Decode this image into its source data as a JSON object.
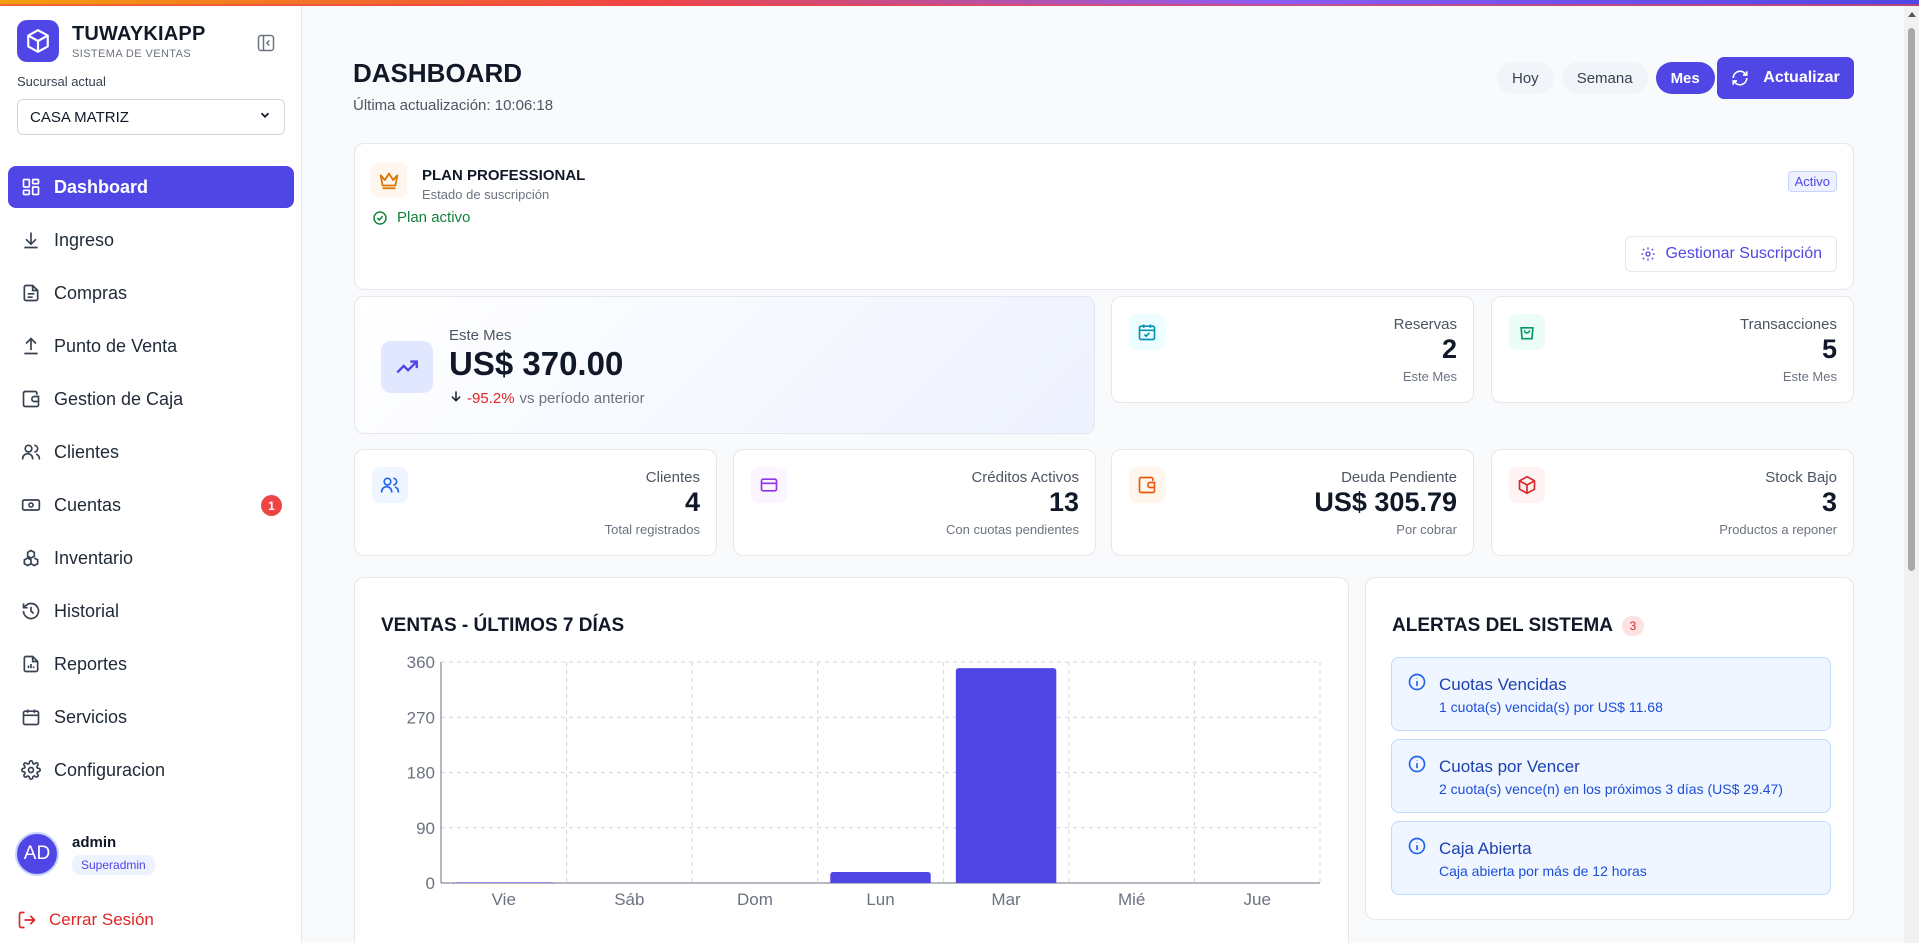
{
  "brand": {
    "title": "TUWAYKIAPP",
    "subtitle": "SISTEMA DE VENTAS"
  },
  "branch": {
    "label": "Sucursal actual",
    "selected": "CASA MATRIZ"
  },
  "nav": {
    "items": [
      {
        "label": "Dashboard",
        "icon": "dashboard-icon"
      },
      {
        "label": "Ingreso",
        "icon": "download-icon"
      },
      {
        "label": "Compras",
        "icon": "document-icon"
      },
      {
        "label": "Punto de Venta",
        "icon": "upload-icon"
      },
      {
        "label": "Gestion de Caja",
        "icon": "wallet-icon"
      },
      {
        "label": "Clientes",
        "icon": "users-icon"
      },
      {
        "label": "Cuentas",
        "icon": "money-icon",
        "badge": "1"
      },
      {
        "label": "Inventario",
        "icon": "boxes-icon"
      },
      {
        "label": "Historial",
        "icon": "history-icon"
      },
      {
        "label": "Reportes",
        "icon": "report-icon"
      },
      {
        "label": "Servicios",
        "icon": "calendar-icon"
      },
      {
        "label": "Configuracion",
        "icon": "gear-icon"
      }
    ]
  },
  "user": {
    "initials": "AD",
    "name": "admin",
    "role": "Superadmin"
  },
  "logout": {
    "label": "Cerrar Sesión"
  },
  "header": {
    "title": "DASHBOARD",
    "last_update": "Última actualización: 10:06:18",
    "periods": [
      "Hoy",
      "Semana",
      "Mes"
    ],
    "active_period": "Mes",
    "refresh_label": "Actualizar"
  },
  "plan": {
    "title": "PLAN PROFESSIONAL",
    "subtitle": "Estado de suscripción",
    "status": "Plan activo",
    "badge": "Activo",
    "manage_label": "Gestionar Suscripción"
  },
  "revenue": {
    "label": "Este Mes",
    "value": "US$ 370.00",
    "change": "-95.2%",
    "change_text": "vs período anterior"
  },
  "stats": {
    "reservas": {
      "label": "Reservas",
      "value": "2",
      "sub": "Este Mes"
    },
    "transacciones": {
      "label": "Transacciones",
      "value": "5",
      "sub": "Este Mes"
    },
    "clientes": {
      "label": "Clientes",
      "value": "4",
      "sub": "Total registrados"
    },
    "creditos": {
      "label": "Créditos Activos",
      "value": "13",
      "sub": "Con cuotas pendientes"
    },
    "deuda": {
      "label": "Deuda Pendiente",
      "value": "US$ 305.79",
      "sub": "Por cobrar"
    },
    "stock": {
      "label": "Stock Bajo",
      "value": "3",
      "sub": "Productos a reponer"
    }
  },
  "colors": {
    "accent": "#4f46e5",
    "danger": "#dc2626",
    "success": "#15803d"
  },
  "chart_data": {
    "type": "bar",
    "title": "VENTAS - ÚLTIMOS 7 DÍAS",
    "categories": [
      "Vie",
      "Sáb",
      "Dom",
      "Lun",
      "Mar",
      "Mié",
      "Jue"
    ],
    "values": [
      1,
      0,
      0,
      18,
      350,
      0,
      0
    ],
    "yticks": [
      0,
      90,
      180,
      270,
      360
    ],
    "ylim": [
      0,
      360
    ],
    "grid": true,
    "color": "#4f46e5"
  },
  "alerts": {
    "title": "ALERTAS DEL SISTEMA",
    "count": "3",
    "items": [
      {
        "title": "Cuotas Vencidas",
        "text": "1 cuota(s) vencida(s) por US$ 11.68"
      },
      {
        "title": "Cuotas por Vencer",
        "text": "2 cuota(s) vence(n) en los próximos 3 días (US$ 29.47)"
      },
      {
        "title": "Caja Abierta",
        "text": "Caja abierta por más de 12 horas"
      }
    ]
  }
}
